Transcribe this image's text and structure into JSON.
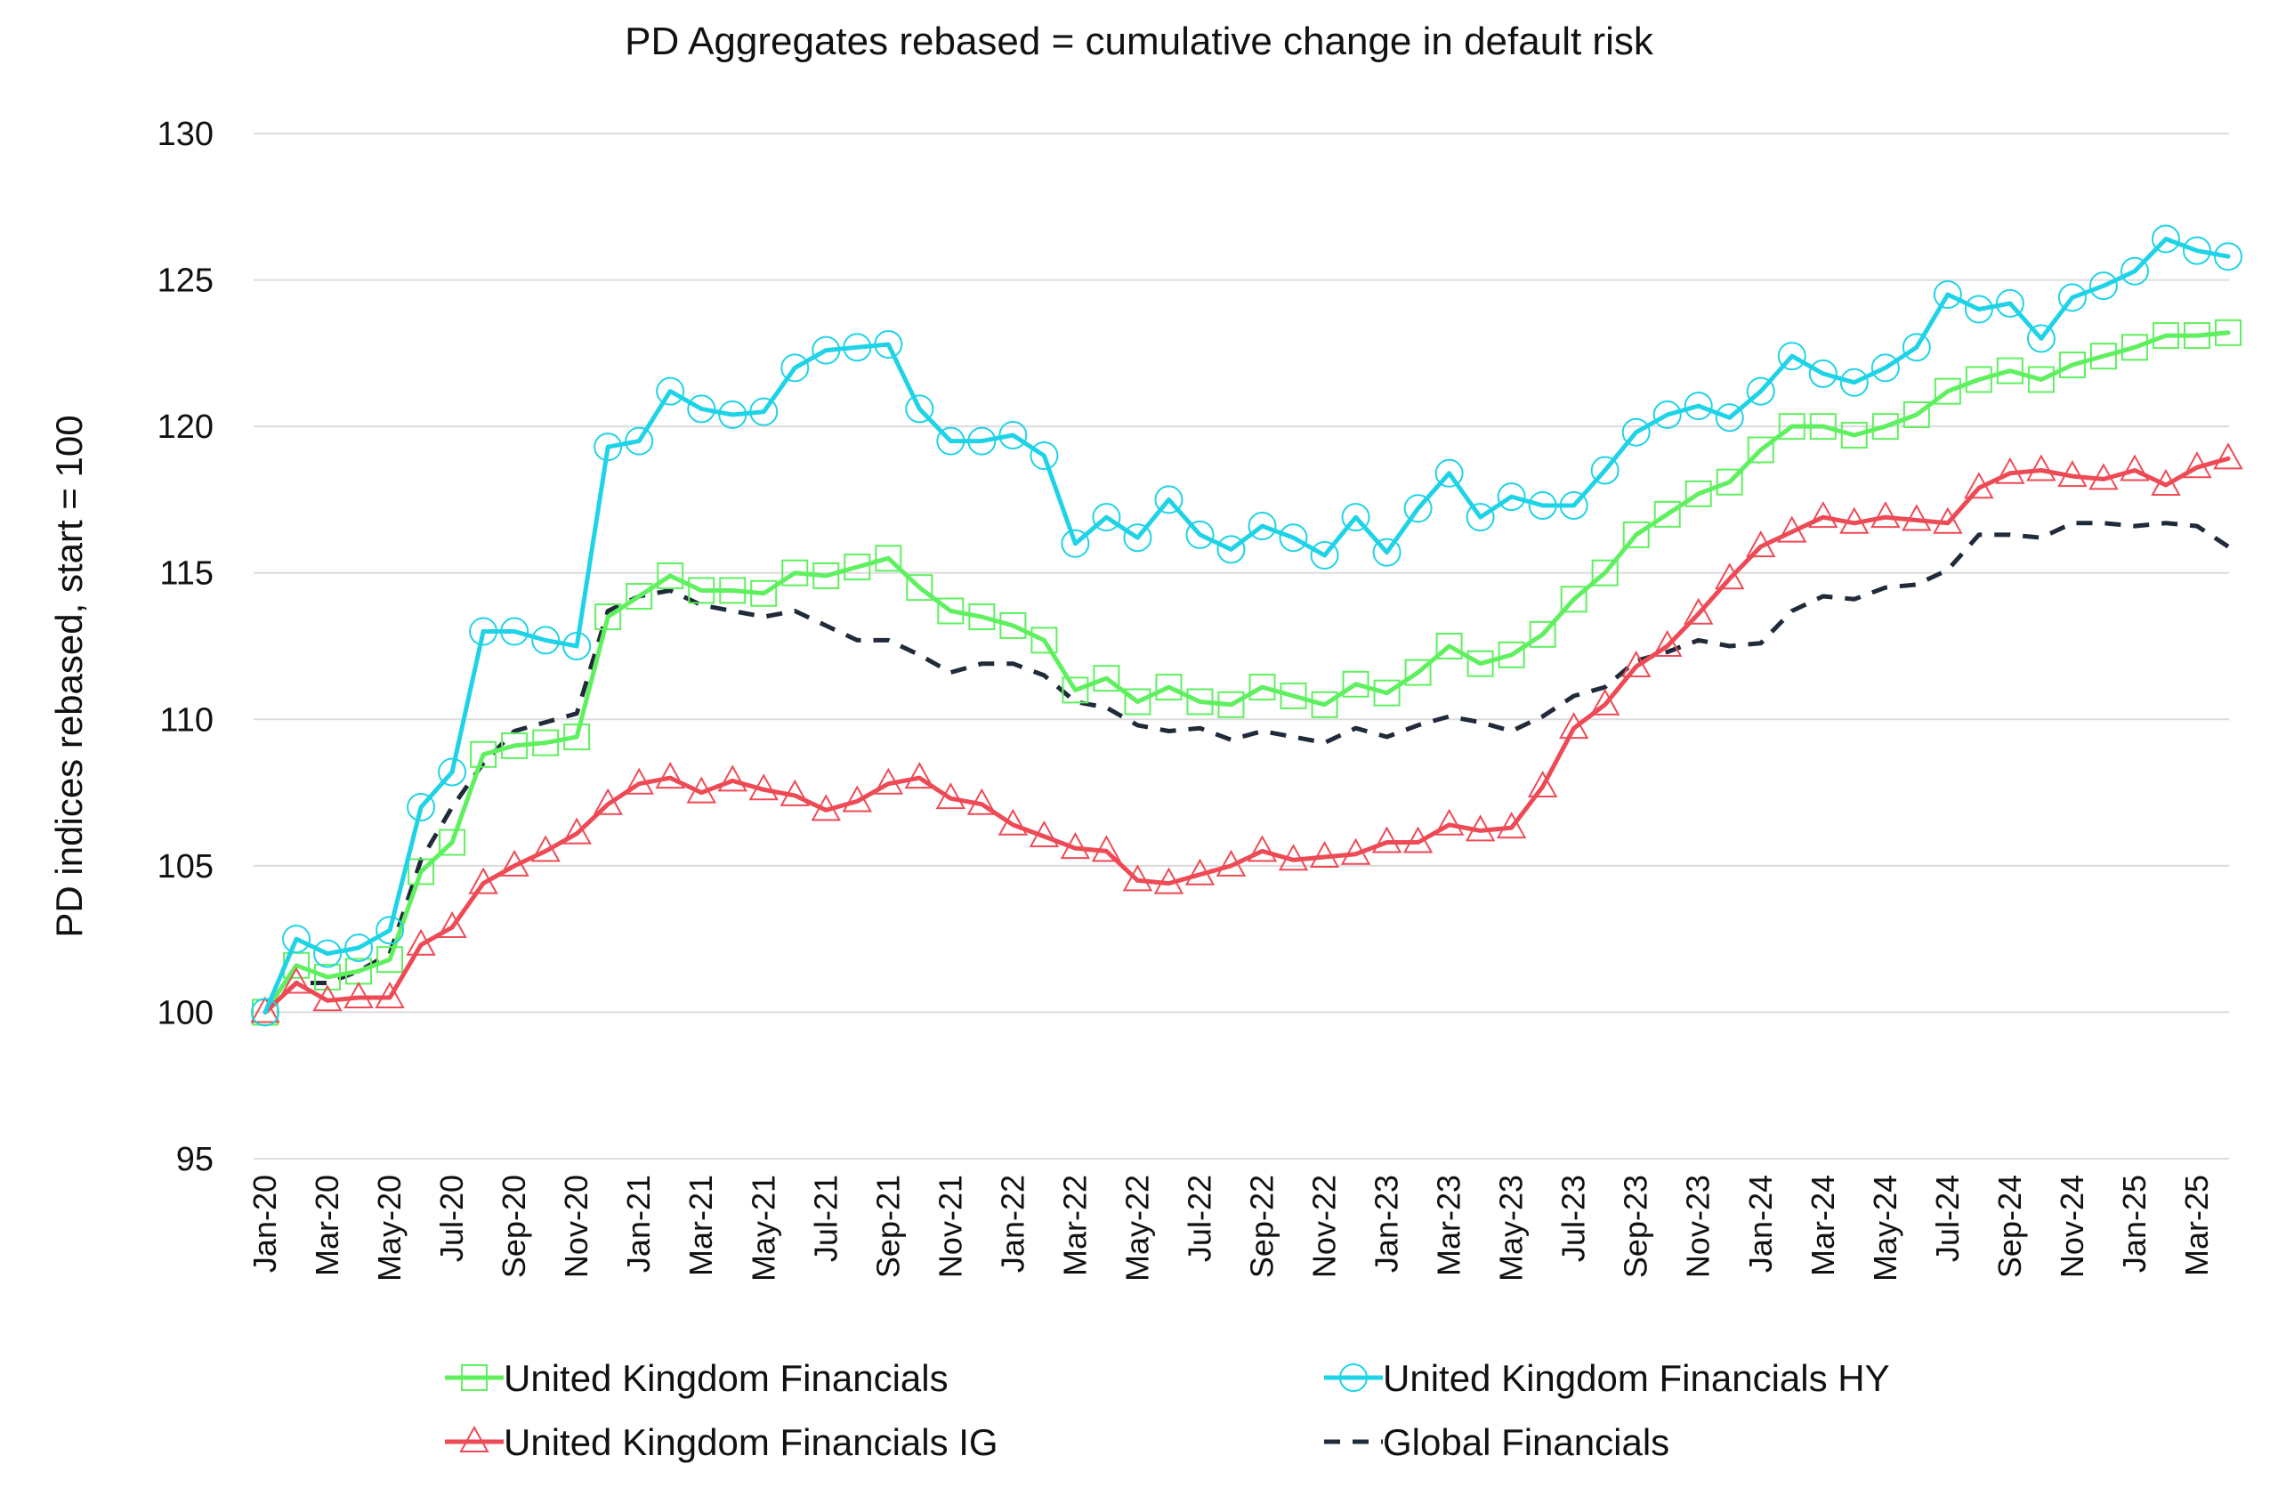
{
  "chart_data": {
    "type": "line",
    "title": "PD Aggregates rebased = cumulative change in default risk",
    "xlabel": "",
    "ylabel": "PD indices rebased, start = 100",
    "ylim": [
      95,
      130
    ],
    "yticks": [
      95,
      100,
      105,
      110,
      115,
      120,
      125,
      130
    ],
    "grid": true,
    "legend_position": "bottom",
    "x": [
      "Jan-20",
      "Feb-20",
      "Mar-20",
      "Apr-20",
      "May-20",
      "Jun-20",
      "Jul-20",
      "Aug-20",
      "Sep-20",
      "Oct-20",
      "Nov-20",
      "Dec-20",
      "Jan-21",
      "Feb-21",
      "Mar-21",
      "Apr-21",
      "May-21",
      "Jun-21",
      "Jul-21",
      "Aug-21",
      "Sep-21",
      "Oct-21",
      "Nov-21",
      "Dec-21",
      "Jan-22",
      "Feb-22",
      "Mar-22",
      "Apr-22",
      "May-22",
      "Jun-22",
      "Jul-22",
      "Aug-22",
      "Sep-22",
      "Oct-22",
      "Nov-22",
      "Dec-22",
      "Jan-23",
      "Feb-23",
      "Mar-23",
      "Apr-23",
      "May-23",
      "Jun-23",
      "Jul-23",
      "Aug-23",
      "Sep-23",
      "Oct-23",
      "Nov-23",
      "Dec-23",
      "Jan-24",
      "Feb-24",
      "Mar-24",
      "Apr-24",
      "May-24",
      "Jun-24",
      "Jul-24",
      "Aug-24",
      "Sep-24",
      "Oct-24",
      "Nov-24",
      "Dec-24",
      "Jan-25",
      "Feb-25",
      "Mar-25",
      "Apr-25"
    ],
    "x_tick_labels": [
      "Jan-20",
      "Mar-20",
      "May-20",
      "Jul-20",
      "Sep-20",
      "Nov-20",
      "Jan-21",
      "Mar-21",
      "May-21",
      "Jul-21",
      "Sep-21",
      "Nov-21",
      "Jan-22",
      "Mar-22",
      "May-22",
      "Jul-22",
      "Sep-22",
      "Nov-22",
      "Jan-23",
      "Mar-23",
      "May-23",
      "Jul-23",
      "Sep-23",
      "Nov-23",
      "Jan-24",
      "Mar-24",
      "May-24",
      "Jul-24",
      "Sep-24",
      "Nov-24",
      "Jan-25",
      "Mar-25"
    ],
    "series": [
      {
        "name": "United Kingdom Financials",
        "color": "#5ef05e",
        "marker": "square",
        "dash": false,
        "values": [
          100,
          101.6,
          101.2,
          101.4,
          101.8,
          104.8,
          105.8,
          108.8,
          109.1,
          109.2,
          109.4,
          113.5,
          114.2,
          114.9,
          114.4,
          114.4,
          114.3,
          115.0,
          114.9,
          115.2,
          115.5,
          114.5,
          113.7,
          113.5,
          113.2,
          112.7,
          111.0,
          111.4,
          110.6,
          111.1,
          110.6,
          110.5,
          111.1,
          110.8,
          110.5,
          111.2,
          110.9,
          111.6,
          112.5,
          111.9,
          112.2,
          112.9,
          114.1,
          115.0,
          116.3,
          117.0,
          117.7,
          118.1,
          119.2,
          120.0,
          120.0,
          119.7,
          120.0,
          120.4,
          121.2,
          121.6,
          121.9,
          121.6,
          122.1,
          122.4,
          122.7,
          123.1,
          123.1,
          123.2
        ]
      },
      {
        "name": "United Kingdom Financials HY",
        "color": "#1fd3e6",
        "marker": "circle",
        "dash": false,
        "values": [
          100,
          102.5,
          102.0,
          102.2,
          102.8,
          107.0,
          108.2,
          113.0,
          113.0,
          112.7,
          112.5,
          119.3,
          119.5,
          121.2,
          120.6,
          120.4,
          120.5,
          122.0,
          122.6,
          122.7,
          122.8,
          120.6,
          119.5,
          119.5,
          119.7,
          119.0,
          116.0,
          116.9,
          116.2,
          117.5,
          116.3,
          115.8,
          116.6,
          116.2,
          115.6,
          116.9,
          115.7,
          117.2,
          118.4,
          116.9,
          117.6,
          117.3,
          117.3,
          118.5,
          119.8,
          120.4,
          120.7,
          120.3,
          121.2,
          122.4,
          121.8,
          121.5,
          122.0,
          122.7,
          124.5,
          124.0,
          124.2,
          123.0,
          124.4,
          124.8,
          125.3,
          126.4,
          126.0,
          125.8
        ]
      },
      {
        "name": "United Kingdom Financials IG",
        "color": "#ee4a55",
        "marker": "triangle",
        "dash": false,
        "values": [
          100,
          101.0,
          100.4,
          100.5,
          100.5,
          102.3,
          102.9,
          104.4,
          105.0,
          105.5,
          106.1,
          107.1,
          107.8,
          108.0,
          107.5,
          107.9,
          107.6,
          107.4,
          106.9,
          107.2,
          107.8,
          108.0,
          107.3,
          107.1,
          106.4,
          106.0,
          105.6,
          105.5,
          104.5,
          104.4,
          104.7,
          105.0,
          105.5,
          105.2,
          105.3,
          105.4,
          105.8,
          105.8,
          106.4,
          106.2,
          106.3,
          107.7,
          109.7,
          110.5,
          111.8,
          112.5,
          113.6,
          114.8,
          115.9,
          116.4,
          116.9,
          116.7,
          116.9,
          116.8,
          116.7,
          117.9,
          118.4,
          118.5,
          118.3,
          118.2,
          118.5,
          118.0,
          118.6,
          118.9
        ]
      },
      {
        "name": "Global Financials",
        "color": "#202b3a",
        "marker": "none",
        "dash": true,
        "values": [
          100,
          101.0,
          101.0,
          101.4,
          102.0,
          105.2,
          107.0,
          108.5,
          109.6,
          109.9,
          110.2,
          113.7,
          114.2,
          114.4,
          113.9,
          113.7,
          113.5,
          113.7,
          113.2,
          112.7,
          112.7,
          112.2,
          111.6,
          111.9,
          111.9,
          111.5,
          110.6,
          110.4,
          109.8,
          109.6,
          109.7,
          109.3,
          109.6,
          109.4,
          109.2,
          109.7,
          109.4,
          109.8,
          110.1,
          109.9,
          109.6,
          110.1,
          110.8,
          111.1,
          112.0,
          112.3,
          112.7,
          112.5,
          112.6,
          113.7,
          114.2,
          114.1,
          114.5,
          114.6,
          115.1,
          116.3,
          116.3,
          116.2,
          116.7,
          116.7,
          116.6,
          116.7,
          116.6,
          115.9
        ]
      }
    ]
  }
}
